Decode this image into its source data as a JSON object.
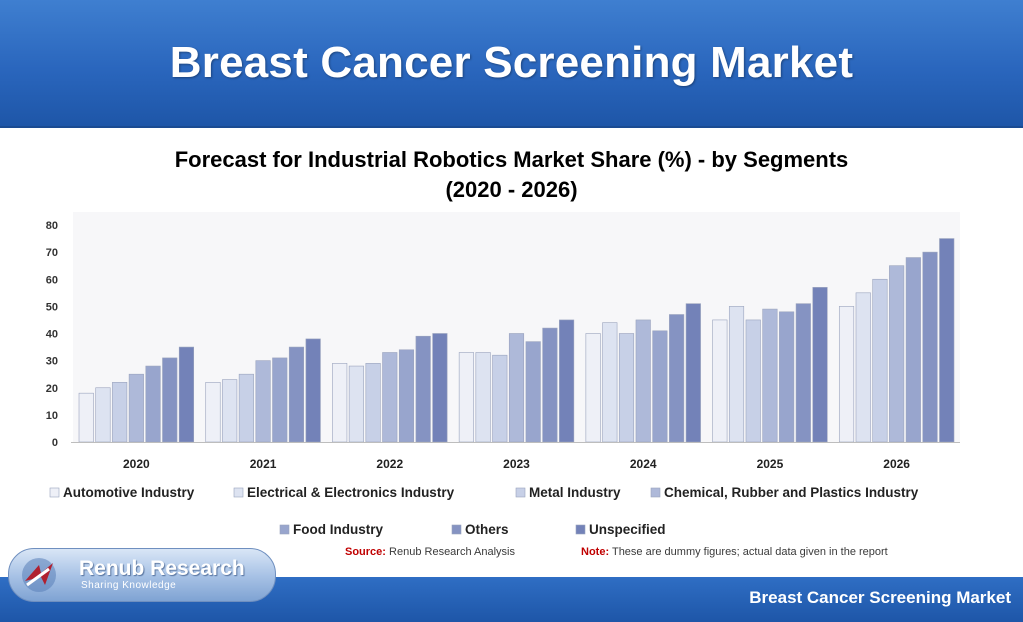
{
  "header": {
    "title": "Breast Cancer Screening Market"
  },
  "footer": {
    "title": "Breast Cancer Screening Market"
  },
  "logo": {
    "name": "Renub Research",
    "tagline": "Sharing Knowledge"
  },
  "notes": {
    "source_label": "Source:",
    "source_text": "Renub Research Analysis",
    "note_label": "Note:",
    "note_text": "These are dummy figures; actual data given in the report"
  },
  "chart_data": {
    "type": "bar",
    "title": "Forecast for Industrial Robotics Market Share (%) - by Segments",
    "subtitle": "(2020 - 2026)",
    "categories": [
      "2020",
      "2021",
      "2022",
      "2023",
      "2024",
      "2025",
      "2026"
    ],
    "ylim": [
      0,
      80
    ],
    "yticks": [
      0,
      10,
      20,
      30,
      40,
      50,
      60,
      70,
      80
    ],
    "grid": false,
    "legend_position": "bottom",
    "series": [
      {
        "name": "Automotive Industry",
        "color": "#eef0f7",
        "values": [
          18,
          22,
          29,
          33,
          40,
          45,
          50
        ]
      },
      {
        "name": "Electrical & Electronics Industry",
        "color": "#dde3f1",
        "values": [
          20,
          23,
          28,
          33,
          44,
          50,
          55
        ]
      },
      {
        "name": "Metal Industry",
        "color": "#c7d0e7",
        "values": [
          22,
          25,
          29,
          32,
          40,
          45,
          60
        ]
      },
      {
        "name": "Chemical, Rubber and Plastics Industry",
        "color": "#aeb9d9",
        "values": [
          25,
          30,
          33,
          40,
          45,
          49,
          65
        ]
      },
      {
        "name": "Food Industry",
        "color": "#98a5cd",
        "values": [
          28,
          31,
          34,
          37,
          41,
          48,
          68
        ]
      },
      {
        "name": "Others",
        "color": "#8593c2",
        "values": [
          31,
          35,
          39,
          42,
          47,
          51,
          70
        ]
      },
      {
        "name": "Unspecified",
        "color": "#7382b8",
        "values": [
          35,
          38,
          40,
          45,
          51,
          57,
          75
        ]
      }
    ]
  }
}
